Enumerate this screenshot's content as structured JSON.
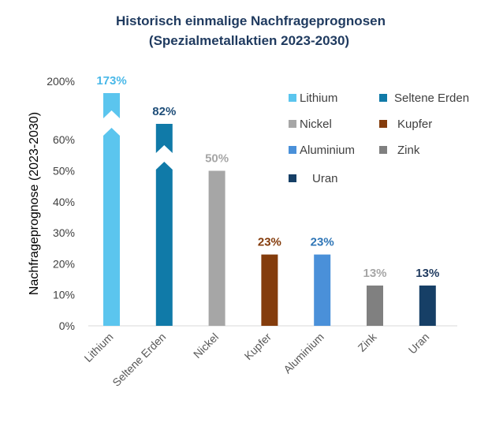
{
  "chart_data": {
    "type": "bar",
    "title_lines": [
      "Historisch einmalige Nachfrageprognosen",
      "(Spezialmetallaktien 2023-2030)"
    ],
    "ylabel": "Nachfrageprognose (2023-2030)",
    "xlabel": "",
    "y_ticks": [
      "0%",
      "10%",
      "20%",
      "30%",
      "40%",
      "50%",
      "60%",
      "200%"
    ],
    "axis_break": "between 60% and 200% (broken bars for Lithium and Seltene Erden)",
    "categories": [
      "Lithium",
      "Seltene Erden",
      "Nickel",
      "Kupfer",
      "Aluminium",
      "Zink",
      "Uran"
    ],
    "values": [
      173,
      82,
      50,
      23,
      23,
      13,
      13
    ],
    "value_labels": [
      "173%",
      "82%",
      "50%",
      "23%",
      "23%",
      "13%",
      "13%"
    ],
    "colors": [
      "#5bc5ee",
      "#107aa8",
      "#a6a6a6",
      "#843c0c",
      "#4a90d9",
      "#808080",
      "#163f66"
    ],
    "label_colors": [
      "#49b8e8",
      "#1f4e79",
      "#a6a6a6",
      "#843c0c",
      "#2e75b6",
      "#a6a6a6",
      "#1f3a5f"
    ],
    "legend": [
      "Lithium",
      "Seltene Erden",
      "Nickel",
      "Kupfer",
      "Aluminium",
      "Zink",
      "Uran"
    ],
    "legend_position": "top-right"
  }
}
